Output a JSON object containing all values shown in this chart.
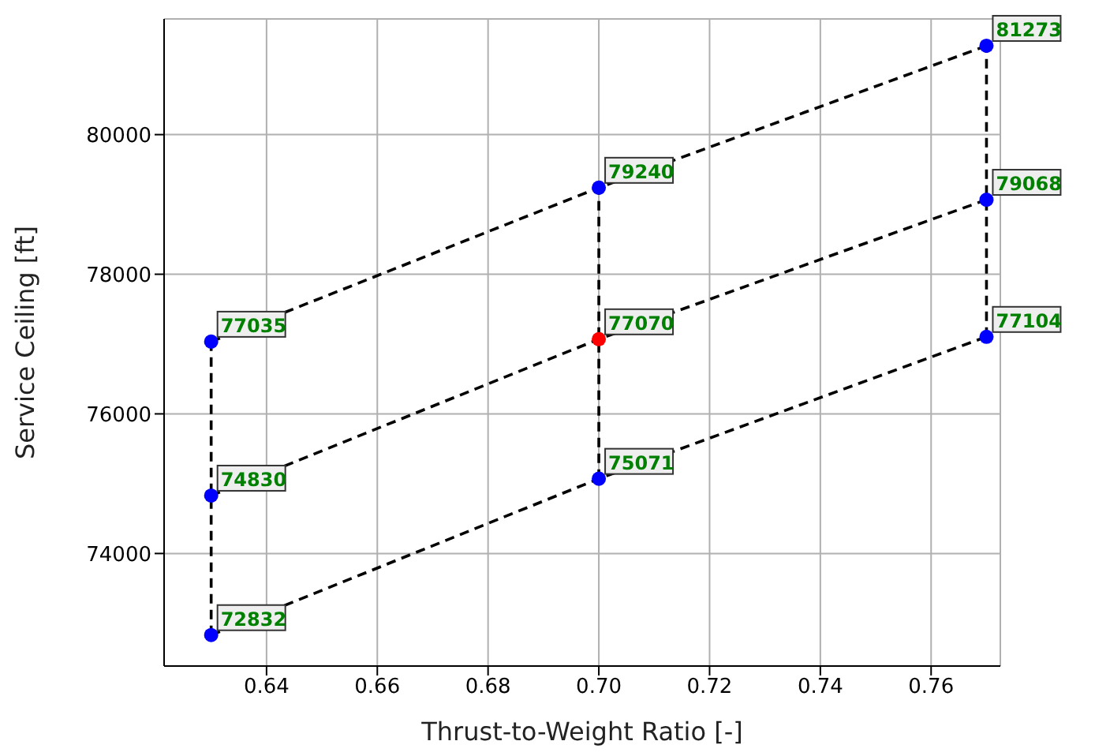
{
  "chart_data": {
    "type": "line",
    "xlabel": "Thrust-to-Weight Ratio [-]",
    "ylabel": "Service Ceiling [ft]",
    "xlim": [
      0.6215,
      0.7725
    ],
    "ylim": [
      72388,
      81657
    ],
    "xticks": [
      {
        "value": 0.64,
        "label": "0.64"
      },
      {
        "value": 0.66,
        "label": "0.66"
      },
      {
        "value": 0.68,
        "label": "0.68"
      },
      {
        "value": 0.7,
        "label": "0.70"
      },
      {
        "value": 0.72,
        "label": "0.72"
      },
      {
        "value": 0.74,
        "label": "0.74"
      },
      {
        "value": 0.76,
        "label": "0.76"
      }
    ],
    "yticks": [
      74000,
      76000,
      78000,
      80000
    ],
    "grid": true,
    "series": [
      {
        "color": "#000000",
        "line_style": "dashed",
        "marker": "none",
        "x": [
          0.63,
          0.7,
          0.77
        ],
        "values": [
          72832,
          75071,
          77104
        ]
      },
      {
        "type": "line",
        "color": "#000000",
        "line_style": "dashed",
        "marker": "none",
        "x": [
          0.63,
          0.7,
          0.77
        ],
        "values": [
          74830,
          77070,
          79068
        ]
      },
      {
        "type": "line",
        "color": "#000000",
        "line_style": "dashed",
        "marker": "none",
        "x": [
          0.63,
          0.7,
          0.77
        ],
        "values": [
          77035,
          79240,
          81273
        ]
      },
      {
        "type": "line",
        "color": "#000000",
        "line_style": "dashed",
        "marker": "none",
        "x": [
          0.63,
          0.63,
          0.63
        ],
        "values": [
          72832,
          74830,
          77035
        ]
      },
      {
        "type": "line",
        "color": "#000000",
        "line_style": "dashed",
        "marker": "none",
        "x": [
          0.7,
          0.7,
          0.7
        ],
        "values": [
          75071,
          77070,
          79240
        ]
      },
      {
        "type": "line",
        "color": "#000000",
        "line_style": "dashed",
        "marker": "none",
        "x": [
          0.77,
          0.77,
          0.77
        ],
        "values": [
          77104,
          79068,
          81273
        ]
      },
      {
        "type": "scatter",
        "marker": "circle",
        "x": [
          0.63,
          0.63,
          0.63,
          0.7,
          0.7,
          0.7,
          0.77,
          0.77,
          0.77
        ],
        "values": [
          72832,
          74830,
          77035,
          75071,
          77070,
          79240,
          77104,
          79068,
          81273
        ],
        "colors": [
          "#0000ff",
          "#0000ff",
          "#0000ff",
          "#0000ff",
          "#ff0000",
          "#0000ff",
          "#0000ff",
          "#0000ff",
          "#0000ff"
        ],
        "value_labels": [
          "72832",
          "74830",
          "77035",
          "75071",
          "77070",
          "79240",
          "77104",
          "79068",
          "81273"
        ]
      }
    ]
  }
}
